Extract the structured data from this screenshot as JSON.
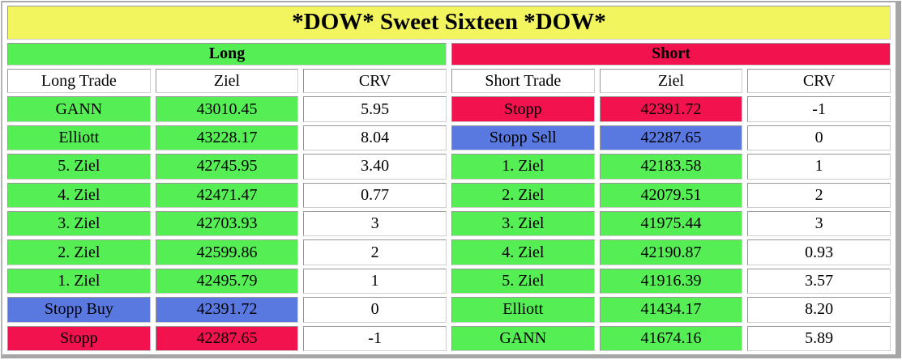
{
  "chart_data": {
    "type": "table",
    "title": "*DOW* Sweet Sixteen *DOW*",
    "sections": [
      {
        "header": "Long",
        "header_color": "green",
        "columns": [
          "Long Trade",
          "Ziel",
          "CRV"
        ],
        "rows": [
          {
            "trade": "GANN",
            "ziel": "43010.45",
            "crv": "5.95",
            "color": "green"
          },
          {
            "trade": "Elliott",
            "ziel": "43228.17",
            "crv": "8.04",
            "color": "green"
          },
          {
            "trade": "5. Ziel",
            "ziel": "42745.95",
            "crv": "3.40",
            "color": "green"
          },
          {
            "trade": "4. Ziel",
            "ziel": "42471.47",
            "crv": "0.77",
            "color": "green"
          },
          {
            "trade": "3. Ziel",
            "ziel": "42703.93",
            "crv": "3",
            "color": "green"
          },
          {
            "trade": "2. Ziel",
            "ziel": "42599.86",
            "crv": "2",
            "color": "green"
          },
          {
            "trade": "1. Ziel",
            "ziel": "42495.79",
            "crv": "1",
            "color": "green"
          },
          {
            "trade": "Stopp Buy",
            "ziel": "42391.72",
            "crv": "0",
            "color": "blue"
          },
          {
            "trade": "Stopp",
            "ziel": "42287.65",
            "crv": "-1",
            "color": "red"
          }
        ]
      },
      {
        "header": "Short",
        "header_color": "red",
        "columns": [
          "Short Trade",
          "Ziel",
          "CRV"
        ],
        "rows": [
          {
            "trade": "Stopp",
            "ziel": "42391.72",
            "crv": "-1",
            "color": "red"
          },
          {
            "trade": "Stopp Sell",
            "ziel": "42287.65",
            "crv": "0",
            "color": "blue"
          },
          {
            "trade": "1. Ziel",
            "ziel": "42183.58",
            "crv": "1",
            "color": "green"
          },
          {
            "trade": "2. Ziel",
            "ziel": "42079.51",
            "crv": "2",
            "color": "green"
          },
          {
            "trade": "3. Ziel",
            "ziel": "41975.44",
            "crv": "3",
            "color": "green"
          },
          {
            "trade": "4. Ziel",
            "ziel": "42190.87",
            "crv": "0.93",
            "color": "green"
          },
          {
            "trade": "5. Ziel",
            "ziel": "41916.39",
            "crv": "3.57",
            "color": "green"
          },
          {
            "trade": "Elliott",
            "ziel": "41434.17",
            "crv": "8.20",
            "color": "green"
          },
          {
            "trade": "GANN",
            "ziel": "41674.16",
            "crv": "5.89",
            "color": "green"
          }
        ]
      }
    ]
  },
  "colors": {
    "green": "#55EE55",
    "red": "#F2124E",
    "blue": "#5A79E0",
    "yellow": "#F2F55E",
    "white": "#FFFFFF"
  }
}
